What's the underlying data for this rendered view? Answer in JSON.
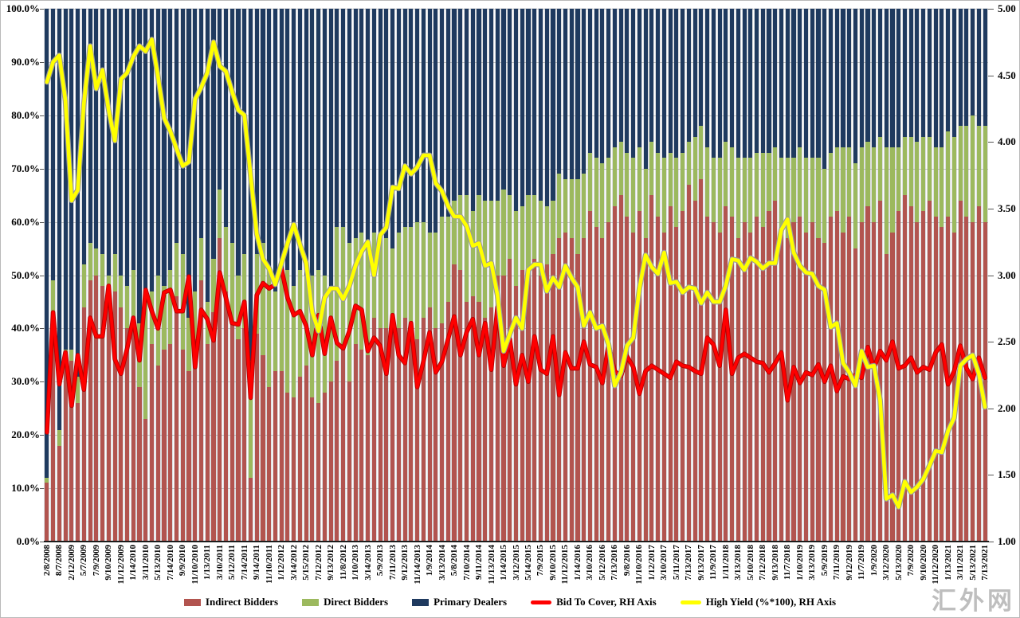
{
  "watermark": {
    "text": "汇外网"
  },
  "axes": {
    "left": {
      "labels": [
        "100.0%",
        "90.0%",
        "80.0%",
        "70.0%",
        "60.0%",
        "50.0%",
        "40.0%",
        "30.0%",
        "20.0%",
        "10.0%",
        "0.0%"
      ]
    },
    "right": {
      "labels": [
        "5.00",
        "4.50",
        "4.00",
        "3.50",
        "3.00",
        "2.50",
        "2.00",
        "1.50",
        "1.00"
      ]
    }
  },
  "legend": {
    "items": [
      {
        "label": "Indirect Bidders",
        "type": "bar",
        "color": "#b2544f"
      },
      {
        "label": "Direct Bidders",
        "type": "bar",
        "color": "#9cb95e"
      },
      {
        "label": "Primary Dealers",
        "type": "bar",
        "color": "#1f3a5f"
      },
      {
        "label": "Bid To Cover, RH Axis",
        "type": "line",
        "color": "#fe0000"
      },
      {
        "label": "High Yield (%*100), RH Axis",
        "type": "line",
        "color": "#ffff00"
      }
    ]
  },
  "chart_data": {
    "type": "bar",
    "subtype": "stacked-column-with-lines",
    "left_axis": {
      "min": 0,
      "max": 100,
      "step": 10,
      "format": "percent"
    },
    "right_axis": {
      "min": 1,
      "max": 5,
      "step": 0.5
    },
    "grid": true,
    "label_every_n_bars": 2,
    "x_labels": [
      "2/8/2008",
      "8/7/2008",
      "2/12/2009",
      "5/7/2009",
      "7/9/2009",
      "9/10/2009",
      "11/12/2009",
      "1/14/2010",
      "3/11/2010",
      "5/13/2010",
      "7/14/2010",
      "9/9/2010",
      "11/10/2010",
      "1/13/2011",
      "3/10/2011",
      "5/12/2011",
      "7/14/2011",
      "9/14/2011",
      "11/10/2011",
      "1/12/2012",
      "3/14/2012",
      "5/15/2012",
      "7/12/2012",
      "9/13/2012",
      "11/8/2012",
      "1/10/2013",
      "3/14/2013",
      "5/9/2013",
      "7/11/2013",
      "9/12/2013",
      "11/14/2013",
      "1/9/2014",
      "3/13/2014",
      "5/8/2014",
      "7/10/2014",
      "9/11/2014",
      "11/13/2014",
      "1/14/2015",
      "3/12/2015",
      "5/14/2015",
      "7/9/2015",
      "9/10/2015",
      "11/12/2015",
      "1/14/2016",
      "3/10/2016",
      "5/12/2016",
      "7/13/2016",
      "9/8/2016",
      "11/10/2016",
      "1/12/2017",
      "3/10/2017",
      "5/11/2017",
      "7/13/2017",
      "9/13/2017",
      "11/9/2017",
      "1/11/2018",
      "3/13/2018",
      "5/10/2018",
      "7/12/2018",
      "9/13/2018",
      "11/7/2018",
      "1/10/2019",
      "3/13/2019",
      "5/9/2019",
      "7/11/2019",
      "9/12/2019",
      "11/7/2019",
      "1/9/2020",
      "3/12/2020",
      "5/13/2020",
      "7/9/2020",
      "9/10/2020",
      "11/12/2020",
      "1/13/2021",
      "3/11/2021",
      "5/13/2021",
      "7/13/2021"
    ],
    "series": [
      {
        "name": "Indirect Bidders",
        "type": "bar",
        "axis": "left",
        "color": "#b2544f",
        "values": [
          11,
          43,
          18,
          33,
          34,
          26,
          44,
          49,
          50,
          48,
          45,
          47,
          44,
          40,
          41,
          29,
          23,
          37,
          33,
          36,
          37,
          46,
          36,
          32,
          38,
          49,
          37,
          43,
          57,
          47,
          41,
          38,
          40,
          12,
          39,
          35,
          29,
          32,
          32,
          28,
          27,
          31,
          33,
          27,
          26,
          28,
          30,
          34,
          36,
          30,
          37,
          36,
          35,
          42,
          40,
          40,
          40,
          40,
          42,
          39,
          38,
          42,
          44,
          40,
          41,
          45,
          52,
          51,
          45,
          46,
          45,
          42,
          44,
          50,
          50,
          53,
          48,
          51,
          51,
          53,
          50,
          52,
          54,
          57,
          58,
          57,
          54,
          57,
          62,
          59,
          57,
          60,
          63,
          65,
          61,
          58,
          62,
          57,
          65,
          61,
          58,
          63,
          59,
          62,
          67,
          64,
          68,
          61,
          60,
          58,
          63,
          61,
          57,
          60,
          58,
          61,
          59,
          62,
          64,
          59,
          57,
          60,
          61,
          58,
          60,
          57,
          56,
          61,
          62,
          58,
          61,
          55,
          60,
          63,
          60,
          64,
          54,
          58,
          62,
          65,
          63,
          60,
          62,
          64,
          61,
          59,
          61,
          58,
          64,
          61,
          60,
          63,
          60
        ]
      },
      {
        "name": "Direct Bidders",
        "type": "bar",
        "axis": "left",
        "color": "#9cb95e",
        "values": [
          1,
          6,
          3,
          3,
          2,
          5,
          8,
          7,
          5,
          6,
          5,
          7,
          6,
          8,
          10,
          12,
          24,
          10,
          17,
          12,
          14,
          10,
          18,
          10,
          9,
          8,
          8,
          10,
          9,
          12,
          15,
          12,
          14,
          22,
          15,
          21,
          22,
          15,
          18,
          23,
          21,
          20,
          17,
          23,
          25,
          22,
          18,
          25,
          23,
          26,
          20,
          22,
          21,
          16,
          18,
          17,
          15,
          18,
          17,
          20,
          22,
          18,
          14,
          18,
          20,
          16,
          12,
          14,
          20,
          16,
          20,
          22,
          20,
          14,
          16,
          12,
          14,
          12,
          14,
          12,
          14,
          11,
          10,
          12,
          10,
          11,
          14,
          12,
          11,
          13,
          14,
          12,
          11,
          10,
          12,
          14,
          12,
          13,
          10,
          12,
          14,
          10,
          13,
          11,
          8,
          12,
          10,
          13,
          12,
          14,
          12,
          13,
          15,
          12,
          14,
          12,
          14,
          11,
          10,
          13,
          15,
          12,
          13,
          14,
          12,
          15,
          14,
          12,
          12,
          16,
          13,
          16,
          14,
          12,
          14,
          12,
          20,
          16,
          12,
          11,
          13,
          15,
          14,
          12,
          13,
          15,
          16,
          18,
          14,
          17,
          20,
          15,
          18
        ]
      },
      {
        "name": "Primary Dealers",
        "type": "bar",
        "axis": "left",
        "color": "#1f3a5f",
        "values": [
          88,
          51,
          79,
          64,
          64,
          69,
          48,
          44,
          45,
          46,
          50,
          46,
          50,
          52,
          49,
          59,
          53,
          53,
          50,
          52,
          49,
          44,
          46,
          58,
          53,
          43,
          55,
          47,
          34,
          41,
          44,
          50,
          46,
          66,
          46,
          44,
          49,
          53,
          50,
          49,
          52,
          49,
          50,
          50,
          49,
          50,
          52,
          41,
          41,
          44,
          43,
          42,
          44,
          42,
          42,
          43,
          45,
          42,
          41,
          41,
          40,
          40,
          42,
          42,
          39,
          39,
          36,
          35,
          35,
          38,
          35,
          36,
          36,
          36,
          34,
          35,
          38,
          37,
          35,
          35,
          36,
          37,
          36,
          31,
          32,
          32,
          32,
          31,
          27,
          28,
          29,
          28,
          26,
          25,
          27,
          28,
          26,
          30,
          25,
          27,
          28,
          27,
          28,
          27,
          25,
          24,
          22,
          26,
          28,
          28,
          25,
          26,
          28,
          28,
          28,
          27,
          27,
          27,
          26,
          28,
          28,
          28,
          26,
          28,
          28,
          28,
          30,
          27,
          26,
          26,
          26,
          29,
          26,
          25,
          26,
          24,
          26,
          26,
          26,
          24,
          24,
          25,
          24,
          24,
          26,
          26,
          23,
          24,
          22,
          22,
          20,
          22,
          22
        ]
      },
      {
        "name": "Bid To Cover, RH Axis",
        "type": "line",
        "axis": "right",
        "color": "#fe0000",
        "values": [
          1.82,
          2.72,
          2.18,
          2.42,
          2.02,
          2.4,
          2.14,
          2.68,
          2.54,
          2.54,
          2.92,
          2.37,
          2.26,
          2.45,
          2.68,
          2.36,
          2.89,
          2.73,
          2.6,
          2.87,
          2.89,
          2.73,
          2.73,
          2.99,
          2.31,
          2.74,
          2.67,
          2.51,
          3.02,
          2.83,
          2.64,
          2.63,
          2.8,
          2.08,
          2.85,
          2.94,
          2.9,
          2.93,
          3.05,
          2.83,
          2.7,
          2.73,
          2.62,
          2.4,
          2.7,
          2.41,
          2.68,
          2.49,
          2.45,
          2.58,
          2.77,
          2.74,
          2.43,
          2.53,
          2.47,
          2.26,
          2.7,
          2.4,
          2.34,
          2.64,
          2.16,
          2.35,
          2.57,
          2.27,
          2.35,
          2.52,
          2.69,
          2.4,
          2.57,
          2.67,
          2.4,
          2.64,
          2.29,
          2.76,
          2.32,
          2.52,
          2.18,
          2.4,
          2.2,
          2.54,
          2.29,
          2.26,
          2.54,
          2.1,
          2.42,
          2.3,
          2.3,
          2.5,
          2.33,
          2.31,
          2.19,
          2.48,
          2.28,
          2.24,
          2.39,
          2.31,
          2.11,
          2.28,
          2.32,
          2.29,
          2.26,
          2.23,
          2.35,
          2.32,
          2.31,
          2.28,
          2.26,
          2.53,
          2.48,
          2.32,
          2.74,
          2.26,
          2.38,
          2.41,
          2.38,
          2.35,
          2.34,
          2.27,
          2.34,
          2.42,
          2.06,
          2.31,
          2.19,
          2.27,
          2.25,
          2.33,
          2.2,
          2.32,
          2.13,
          2.24,
          2.22,
          2.25,
          2.23,
          2.46,
          2.3,
          2.43,
          2.36,
          2.5,
          2.3,
          2.32,
          2.38,
          2.27,
          2.31,
          2.29,
          2.42,
          2.48,
          2.18,
          2.28,
          2.47,
          2.3,
          2.22,
          2.38,
          2.23
        ]
      },
      {
        "name": "High Yield (%*100), RH Axis",
        "type": "line",
        "axis": "right",
        "color": "#ffff00",
        "values": [
          4.45,
          4.6,
          4.65,
          4.31,
          3.56,
          3.64,
          4.29,
          4.72,
          4.4,
          4.54,
          4.24,
          4.01,
          4.47,
          4.52,
          4.64,
          4.72,
          4.68,
          4.77,
          4.49,
          4.18,
          4.08,
          3.95,
          3.82,
          3.85,
          4.32,
          4.41,
          4.52,
          4.75,
          4.57,
          4.53,
          4.38,
          4.24,
          4.2,
          3.75,
          3.31,
          3.12,
          3.05,
          2.93,
          3.09,
          3.24,
          3.38,
          3.23,
          3.09,
          2.72,
          2.58,
          2.83,
          2.9,
          2.9,
          2.82,
          2.92,
          3.07,
          3.18,
          3.25,
          3.0,
          3.3,
          3.36,
          3.66,
          3.65,
          3.82,
          3.76,
          3.81,
          3.9,
          3.9,
          3.69,
          3.63,
          3.52,
          3.44,
          3.44,
          3.37,
          3.22,
          3.24,
          3.07,
          3.09,
          2.85,
          2.43,
          2.56,
          2.68,
          2.6,
          3.04,
          3.08,
          3.08,
          2.88,
          2.98,
          2.91,
          3.07,
          2.98,
          2.91,
          2.62,
          2.72,
          2.6,
          2.62,
          2.48,
          2.17,
          2.27,
          2.47,
          2.53,
          2.9,
          3.15,
          3.06,
          3.01,
          3.17,
          2.94,
          2.95,
          2.87,
          2.91,
          2.9,
          2.79,
          2.87,
          2.8,
          2.8,
          2.92,
          3.12,
          3.11,
          3.04,
          3.13,
          3.1,
          3.05,
          3.09,
          3.09,
          3.34,
          3.42,
          3.17,
          3.07,
          3.02,
          3.01,
          2.92,
          2.89,
          2.61,
          2.64,
          2.34,
          2.27,
          2.17,
          2.43,
          2.31,
          2.32,
          2.06,
          1.32,
          1.35,
          1.26,
          1.45,
          1.37,
          1.41,
          1.47,
          1.57,
          1.68,
          1.67,
          1.83,
          1.93,
          2.32,
          2.37,
          2.4,
          2.26,
          2.01
        ]
      }
    ]
  }
}
